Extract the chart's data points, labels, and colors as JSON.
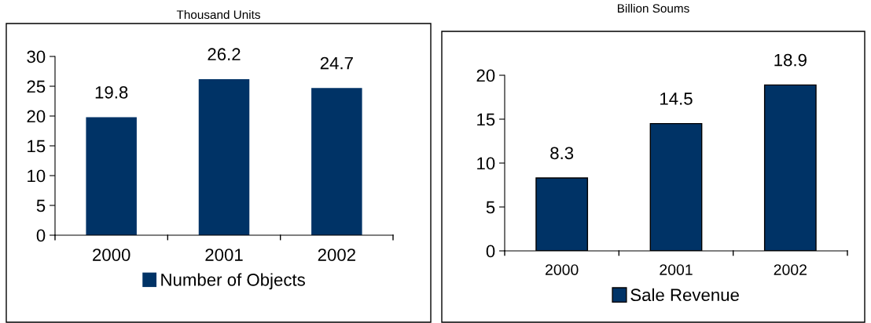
{
  "chart_data": [
    {
      "type": "bar",
      "title": "Thousand Units",
      "categories": [
        "2000",
        "2001",
        "2002"
      ],
      "series": [
        {
          "name": "Number of Objects",
          "color": "#003366",
          "values": [
            19.8,
            26.2,
            24.7
          ]
        }
      ],
      "ylim": [
        0,
        30
      ],
      "yticks": [
        0,
        5,
        10,
        15,
        20,
        25,
        30
      ],
      "data_labels": true,
      "legend": "bottom",
      "grid": false
    },
    {
      "type": "bar",
      "title": "Billion Soums",
      "categories": [
        "2000",
        "2001",
        "2002"
      ],
      "series": [
        {
          "name": "Sale Revenue",
          "color": "#003366",
          "values": [
            8.3,
            14.5,
            18.9
          ]
        }
      ],
      "ylim": [
        0,
        20
      ],
      "yticks": [
        0,
        5,
        10,
        15,
        20
      ],
      "data_labels": true,
      "legend": "bottom",
      "grid": false
    }
  ]
}
